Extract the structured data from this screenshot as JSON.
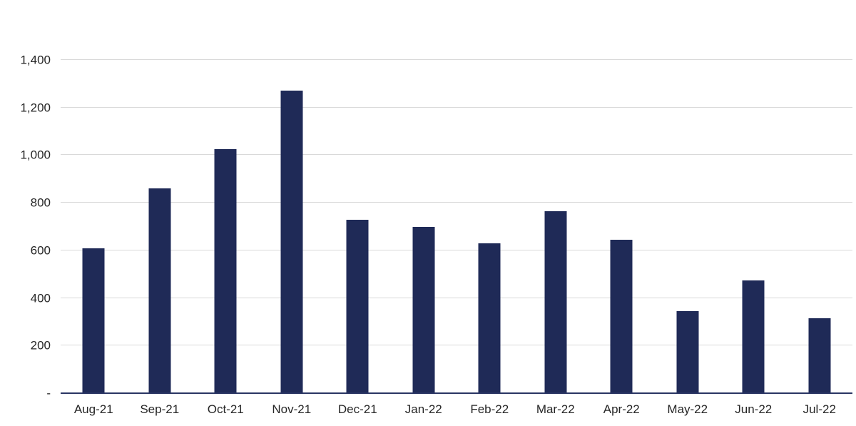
{
  "chart_data": {
    "type": "bar",
    "title": "",
    "xlabel": "",
    "ylabel": "",
    "categories": [
      "Aug-21",
      "Sep-21",
      "Oct-21",
      "Nov-21",
      "Dec-21",
      "Jan-22",
      "Feb-22",
      "Mar-22",
      "Apr-22",
      "May-22",
      "Jun-22",
      "Jul-22"
    ],
    "values": [
      610,
      860,
      1025,
      1270,
      730,
      700,
      630,
      765,
      645,
      345,
      475,
      315
    ],
    "ylim": [
      0,
      1400
    ],
    "yticks": [
      {
        "value": 0,
        "label": "-"
      },
      {
        "value": 200,
        "label": "200"
      },
      {
        "value": 400,
        "label": "400"
      },
      {
        "value": 600,
        "label": "600"
      },
      {
        "value": 800,
        "label": "800"
      },
      {
        "value": 1000,
        "label": "1,000"
      },
      {
        "value": 1200,
        "label": "1,200"
      },
      {
        "value": 1400,
        "label": "1,400"
      }
    ],
    "grid": true,
    "legend": false,
    "colors": {
      "bar": "#1F2A57",
      "gridline": "#D9D9D9",
      "axis_line": "#2A3563",
      "label": "#262626"
    }
  }
}
